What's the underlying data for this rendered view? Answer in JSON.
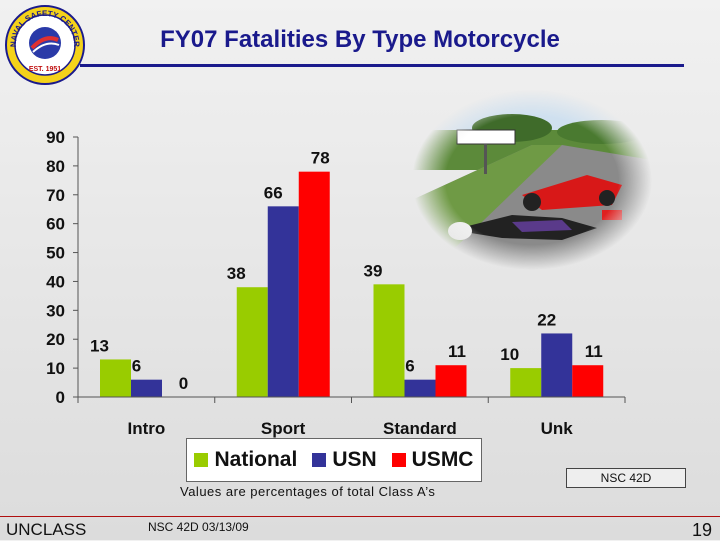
{
  "slide": {
    "title": "FY07 Fatalities By Type Motorcycle",
    "caption": "Values are percentages of total Class A’s",
    "tag_box": "NSC 42D",
    "classification": "UNCLASS",
    "footer_note": "NSC 42D 03/13/09",
    "page_number": "19"
  },
  "seal": {
    "top_text": "NAVAL SAFETY CENTER",
    "year_text": "EST. 1951"
  },
  "chart_data": {
    "type": "bar",
    "categories": [
      "Intro",
      "Sport",
      "Standard",
      "Unk"
    ],
    "series": [
      {
        "name": "National",
        "color": "#99cc00",
        "values": [
          13,
          38,
          39,
          10
        ]
      },
      {
        "name": "USN",
        "color": "#333399",
        "values": [
          6,
          66,
          6,
          22
        ]
      },
      {
        "name": "USMC",
        "color": "#ff0000",
        "values": [
          0,
          78,
          11,
          11
        ]
      }
    ],
    "ylim": [
      0,
      90
    ],
    "yticks": [
      0,
      10,
      20,
      30,
      40,
      50,
      60,
      70,
      80,
      90
    ],
    "legend_position": "bottom"
  }
}
